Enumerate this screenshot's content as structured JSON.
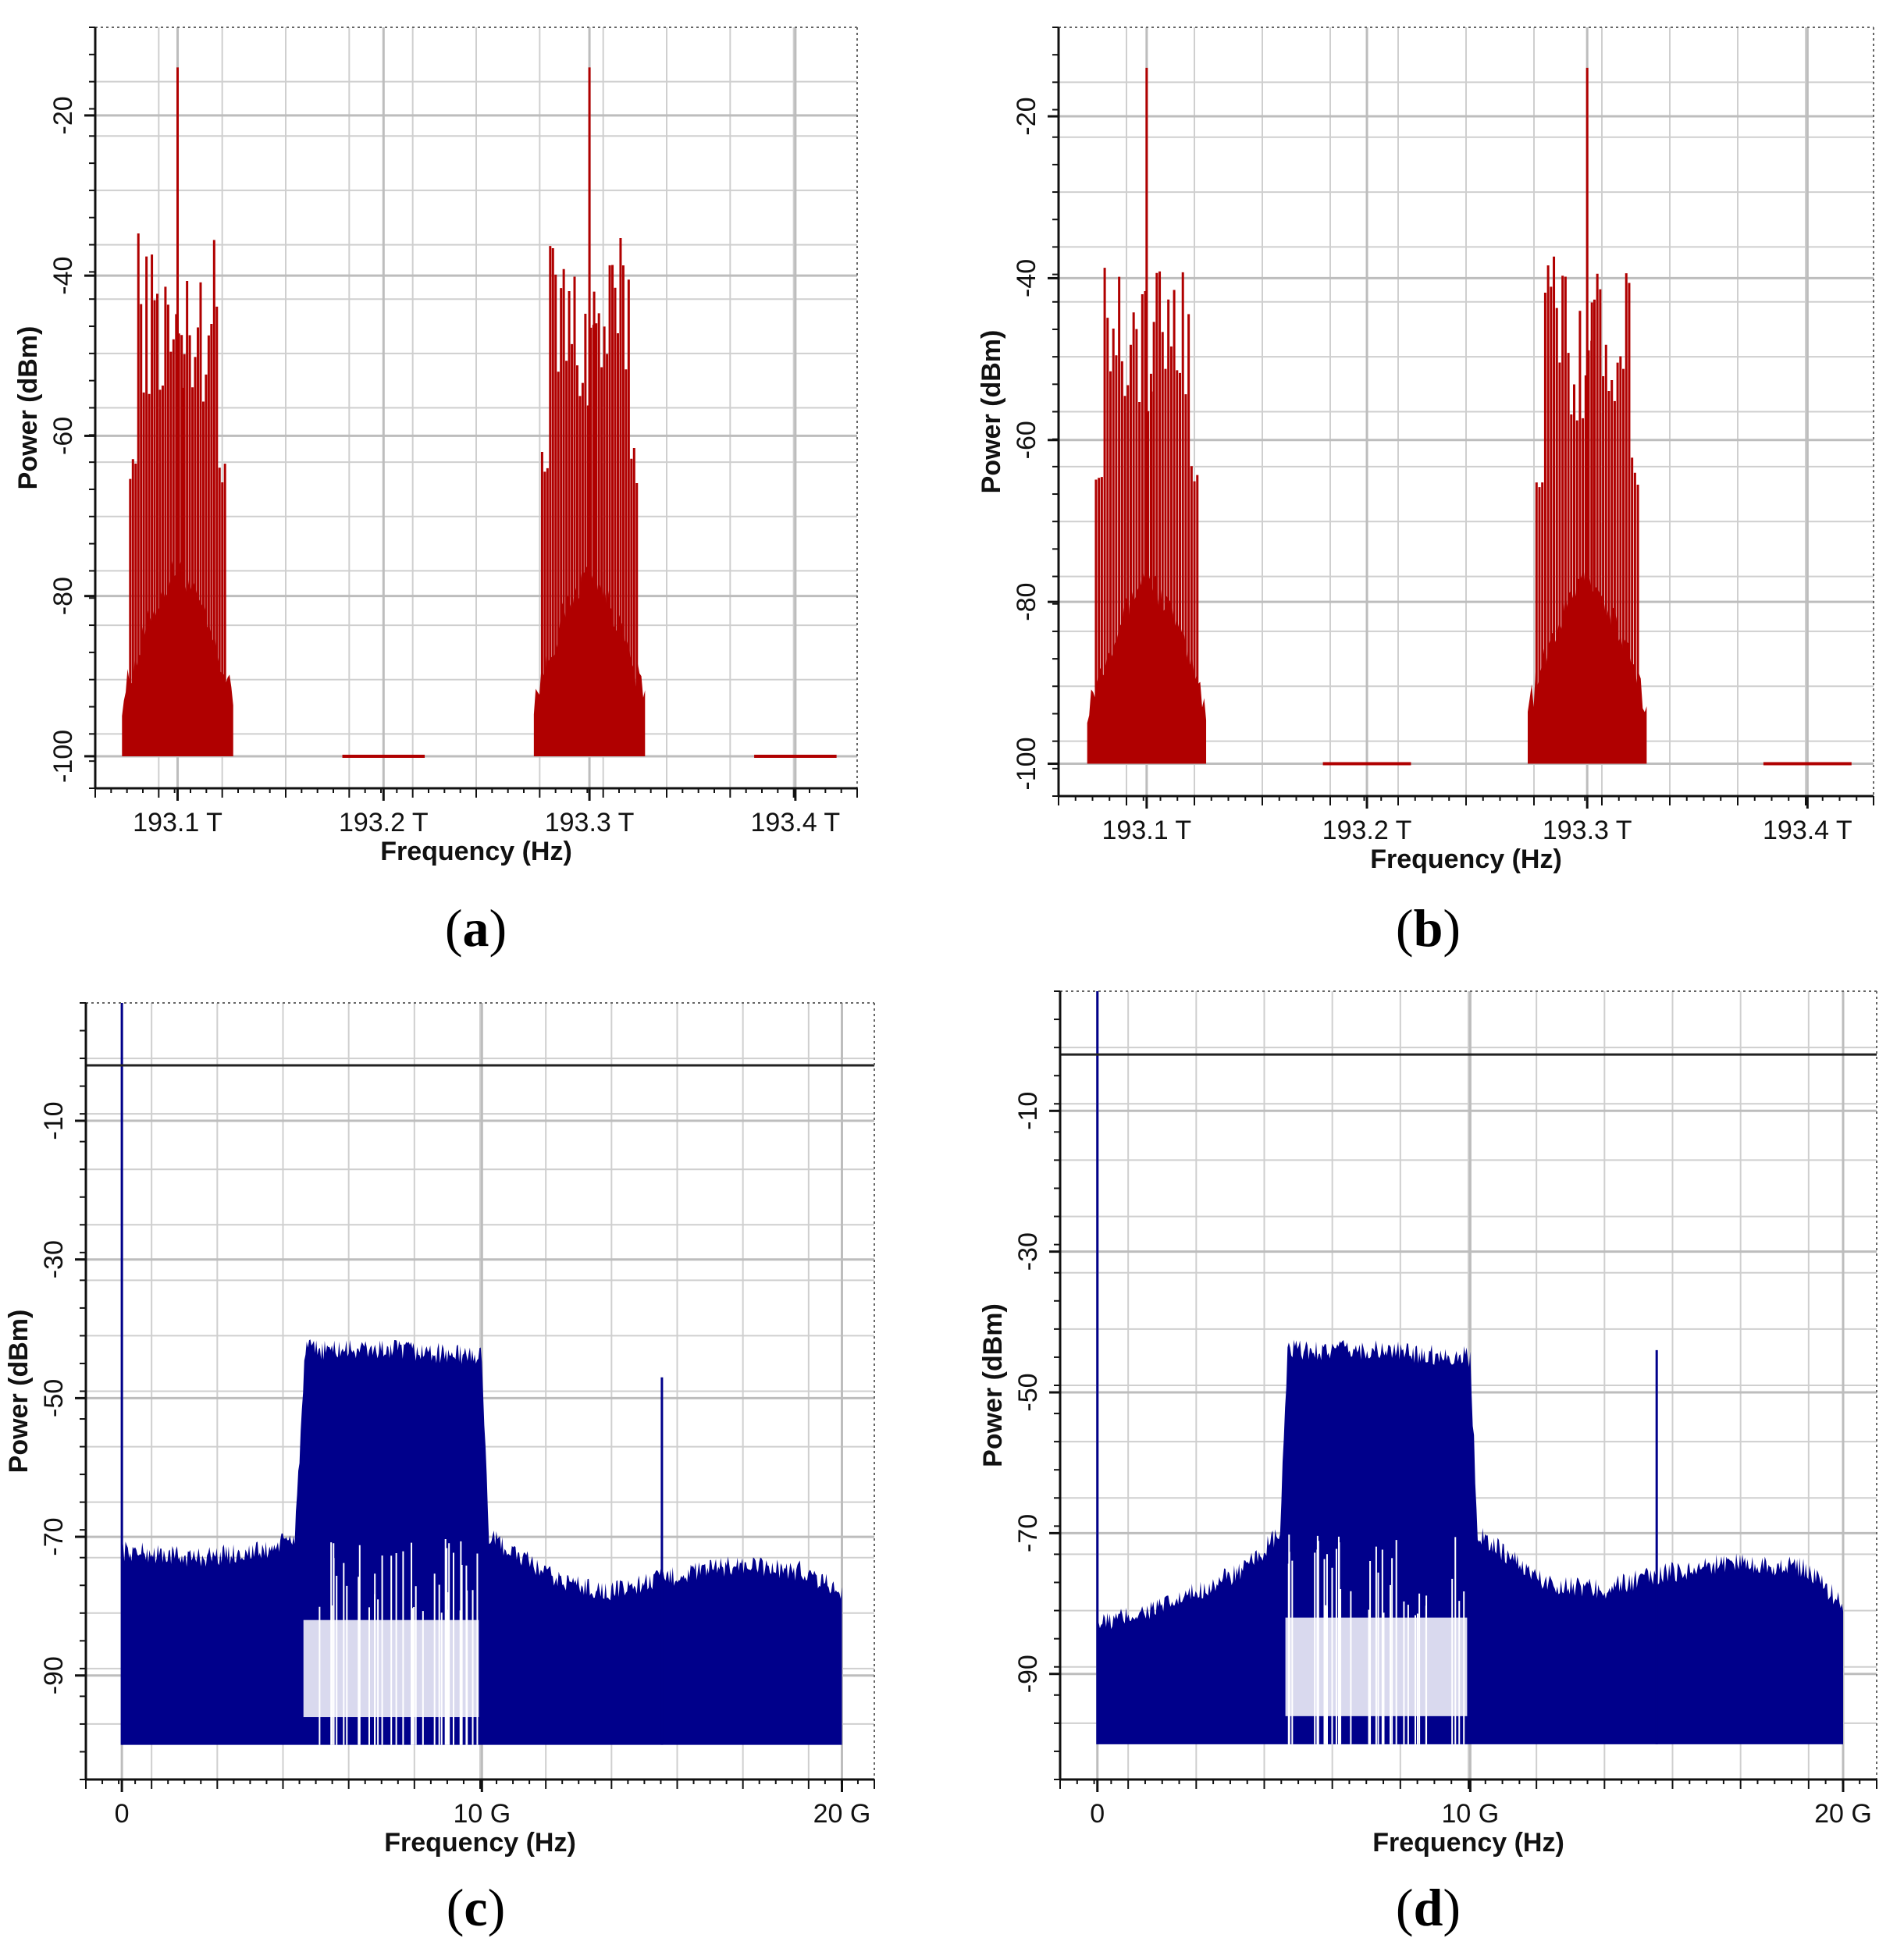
{
  "colors": {
    "optical": "#b00000",
    "electrical": "#00008b",
    "grid": "#cfcfcf",
    "frame": "#666666"
  },
  "chart_data": [
    {
      "id": "a",
      "caption_label": "a",
      "type": "area",
      "series_color": "optical",
      "title": "",
      "xlabel": "Frequency (Hz)",
      "ylabel": "Power (dBm)",
      "xlim": [
        193.06,
        193.43
      ],
      "ylim": [
        -104,
        -9
      ],
      "xticks": [
        193.1,
        193.2,
        193.3,
        193.4
      ],
      "xtick_labels": [
        "193.1 T",
        "193.2 T",
        "193.3 T",
        "193.4 T"
      ],
      "yticks": [
        -20,
        -40,
        -60,
        -80,
        -100
      ],
      "ytick_labels": [
        "-20",
        "-40",
        "-60",
        "-80",
        "-100"
      ],
      "floor": -100,
      "peaks": [
        {
          "center": 193.1,
          "carrier": -14,
          "half_width": 0.02,
          "top": -59,
          "secondary": -54
        },
        {
          "center": 193.3,
          "carrier": -14,
          "half_width": 0.02,
          "top": -59,
          "secondary": -42
        }
      ],
      "floor_segments": [
        [
          193.18,
          193.22
        ],
        [
          193.38,
          193.42
        ]
      ]
    },
    {
      "id": "b",
      "caption_label": "b",
      "type": "area",
      "series_color": "optical",
      "title": "",
      "xlabel": "Frequency (Hz)",
      "ylabel": "Power (dBm)",
      "xlim": [
        193.06,
        193.43
      ],
      "ylim": [
        -104,
        -9
      ],
      "xticks": [
        193.1,
        193.2,
        193.3,
        193.4
      ],
      "xtick_labels": [
        "193.1 T",
        "193.2 T",
        "193.3 T",
        "193.4 T"
      ],
      "yticks": [
        -20,
        -40,
        -60,
        -80,
        -100
      ],
      "ytick_labels": [
        "-20",
        "-40",
        "-60",
        "-80",
        "-100"
      ],
      "floor": -100,
      "peaks": [
        {
          "center": 193.1,
          "carrier": -14,
          "half_width": 0.02,
          "top": -59,
          "secondary": -54
        },
        {
          "center": 193.3,
          "carrier": -14,
          "half_width": 0.02,
          "top": -59,
          "secondary": -43
        }
      ],
      "floor_segments": [
        [
          193.18,
          193.22
        ],
        [
          193.38,
          193.42
        ]
      ]
    },
    {
      "id": "c",
      "caption_label": "c",
      "type": "area",
      "series_color": "electrical",
      "title": "",
      "xlabel": "Frequency (Hz)",
      "ylabel": "Power (dBm)",
      "xlim": [
        -1,
        20.9
      ],
      "ylim": [
        -105,
        7
      ],
      "xticks": [
        0,
        10,
        20
      ],
      "xtick_labels": [
        "0",
        "10 G",
        "20 G"
      ],
      "yticks": [
        -10,
        -30,
        -50,
        -70,
        -90
      ],
      "ytick_labels": [
        "-10",
        "-30",
        "-50",
        "-70",
        "-90"
      ],
      "floor": -100,
      "ref_line": -2,
      "dc_line": 0,
      "spectrum": [
        [
          0,
          -72
        ],
        [
          2,
          -73
        ],
        [
          4,
          -72
        ],
        [
          4.8,
          -70
        ],
        [
          5.1,
          -43
        ],
        [
          7.5,
          -43
        ],
        [
          10,
          -44
        ],
        [
          10.2,
          -70
        ],
        [
          12,
          -76
        ],
        [
          13.5,
          -78
        ],
        [
          15,
          -76
        ],
        [
          17,
          -74
        ],
        [
          19,
          -75
        ],
        [
          20,
          -78
        ]
      ],
      "tone": {
        "x": 15,
        "y": -47
      },
      "band": [
        5,
        10
      ],
      "band_low": -80
    },
    {
      "id": "d",
      "caption_label": "d",
      "type": "area",
      "series_color": "electrical",
      "title": "",
      "xlabel": "Frequency (Hz)",
      "ylabel": "Power (dBm)",
      "xlim": [
        -1,
        20.9
      ],
      "ylim": [
        -105,
        7
      ],
      "xticks": [
        0,
        10,
        20
      ],
      "xtick_labels": [
        "0",
        "10 G",
        "20 G"
      ],
      "yticks": [
        -10,
        -30,
        -50,
        -70,
        -90
      ],
      "ytick_labels": [
        "-10",
        "-30",
        "-50",
        "-70",
        "-90"
      ],
      "floor": -100,
      "ref_line": -2,
      "dc_line": 0,
      "spectrum": [
        [
          0,
          -83
        ],
        [
          2,
          -80
        ],
        [
          4,
          -75
        ],
        [
          4.9,
          -70
        ],
        [
          5.1,
          -44
        ],
        [
          7.5,
          -44
        ],
        [
          10,
          -45
        ],
        [
          10.2,
          -70
        ],
        [
          12,
          -77
        ],
        [
          13.5,
          -78
        ],
        [
          15,
          -76
        ],
        [
          17,
          -74
        ],
        [
          19,
          -75
        ],
        [
          20,
          -80
        ]
      ],
      "tone": {
        "x": 15,
        "y": -44
      },
      "band": [
        5,
        10
      ],
      "band_low": -80
    }
  ]
}
